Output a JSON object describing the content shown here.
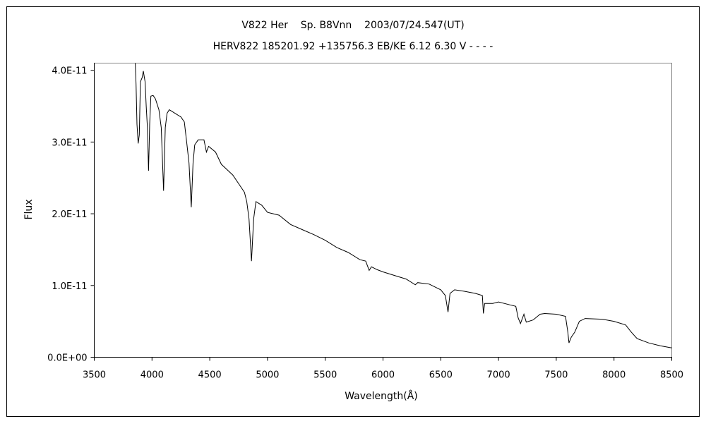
{
  "chart_data": {
    "type": "line",
    "title": "V822 Her    Sp. B8Vnn    2003/07/24.547(UT)",
    "subtitle": "HERV822 185201.92 +135756.3 EB/KE 6.12 6.30 V - - - -",
    "xlabel": "Wavelength(Å)",
    "ylabel": "Flux",
    "xlim": [
      3500,
      8500
    ],
    "ylim": [
      0,
      4.1e-11
    ],
    "x_ticks": [
      "3500",
      "4000",
      "4500",
      "5000",
      "5500",
      "6000",
      "6500",
      "7000",
      "7500",
      "8000",
      "8500"
    ],
    "y_ticks": [
      "0.0E+00",
      "1.0E-11",
      "2.0E-11",
      "3.0E-11",
      "4.0E-11"
    ],
    "grid": false,
    "legend": "none",
    "line_color": "#000000",
    "y_unit_scale": 1e-11,
    "series": [
      {
        "x": [
          3855,
          3862,
          3870,
          3880,
          3890,
          3900,
          3915,
          3925,
          3940,
          3950,
          3960,
          3970,
          3980,
          3990,
          4010,
          4030,
          4060,
          4080,
          4100,
          4115,
          4130,
          4150,
          4200,
          4250,
          4280,
          4300,
          4320,
          4340,
          4355,
          4370,
          4400,
          4450,
          4471,
          4490,
          4550,
          4600,
          4700,
          4750,
          4800,
          4820,
          4840,
          4861,
          4880,
          4900,
          4950,
          5000,
          5100,
          5200,
          5300,
          5400,
          5500,
          5600,
          5700,
          5800,
          5850,
          5880,
          5900,
          5950,
          6000,
          6100,
          6200,
          6280,
          6300,
          6400,
          6500,
          6540,
          6563,
          6580,
          6620,
          6700,
          6800,
          6860,
          6869,
          6880,
          6950,
          7000,
          7100,
          7150,
          7170,
          7190,
          7220,
          7240,
          7300,
          7360,
          7400,
          7500,
          7580,
          7600,
          7610,
          7630,
          7660,
          7700,
          7750,
          7900,
          8000,
          8100,
          8150,
          8200,
          8300,
          8400,
          8500
        ],
        "y": [
          4.1,
          3.81,
          3.25,
          2.98,
          3.1,
          3.84,
          3.9,
          3.99,
          3.84,
          3.5,
          3.2,
          2.6,
          3.25,
          3.64,
          3.65,
          3.6,
          3.45,
          3.2,
          2.32,
          3.2,
          3.4,
          3.45,
          3.4,
          3.35,
          3.28,
          3.0,
          2.71,
          2.09,
          2.7,
          2.96,
          3.03,
          3.03,
          2.86,
          2.94,
          2.86,
          2.69,
          2.54,
          2.42,
          2.3,
          2.17,
          1.93,
          1.34,
          1.93,
          2.17,
          2.12,
          2.02,
          1.98,
          1.85,
          1.78,
          1.71,
          1.63,
          1.53,
          1.46,
          1.36,
          1.34,
          1.21,
          1.26,
          1.22,
          1.19,
          1.14,
          1.09,
          1.01,
          1.04,
          1.02,
          0.94,
          0.86,
          0.63,
          0.89,
          0.94,
          0.92,
          0.89,
          0.86,
          0.61,
          0.75,
          0.75,
          0.77,
          0.73,
          0.71,
          0.55,
          0.47,
          0.6,
          0.49,
          0.52,
          0.6,
          0.61,
          0.6,
          0.57,
          0.35,
          0.2,
          0.28,
          0.35,
          0.5,
          0.54,
          0.53,
          0.5,
          0.45,
          0.35,
          0.26,
          0.2,
          0.16,
          0.13
        ]
      }
    ]
  }
}
